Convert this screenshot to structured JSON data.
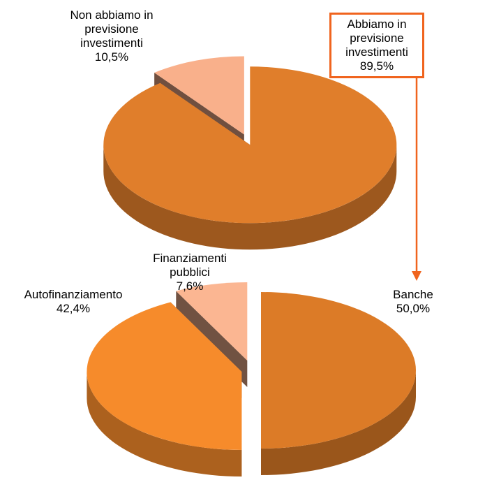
{
  "chart_data": [
    {
      "type": "pie3d",
      "categories": [
        "Abbiamo in previsione investimenti",
        "Non abbiamo in previsione investimenti"
      ],
      "values": [
        89.5,
        10.5
      ],
      "value_labels": [
        "89,5%",
        "10,5%"
      ],
      "colors": [
        "#e07e2b",
        "#f9b08b"
      ]
    },
    {
      "type": "pie3d",
      "categories": [
        "Banche",
        "Autofinanziamento",
        "Finanziamenti pubblici"
      ],
      "values": [
        50.0,
        42.4,
        7.6
      ],
      "value_labels": [
        "50,0%",
        "42,4%",
        "7,6%"
      ],
      "colors": [
        "#dc7b27",
        "#f68b2b",
        "#fbb692"
      ]
    }
  ]
}
